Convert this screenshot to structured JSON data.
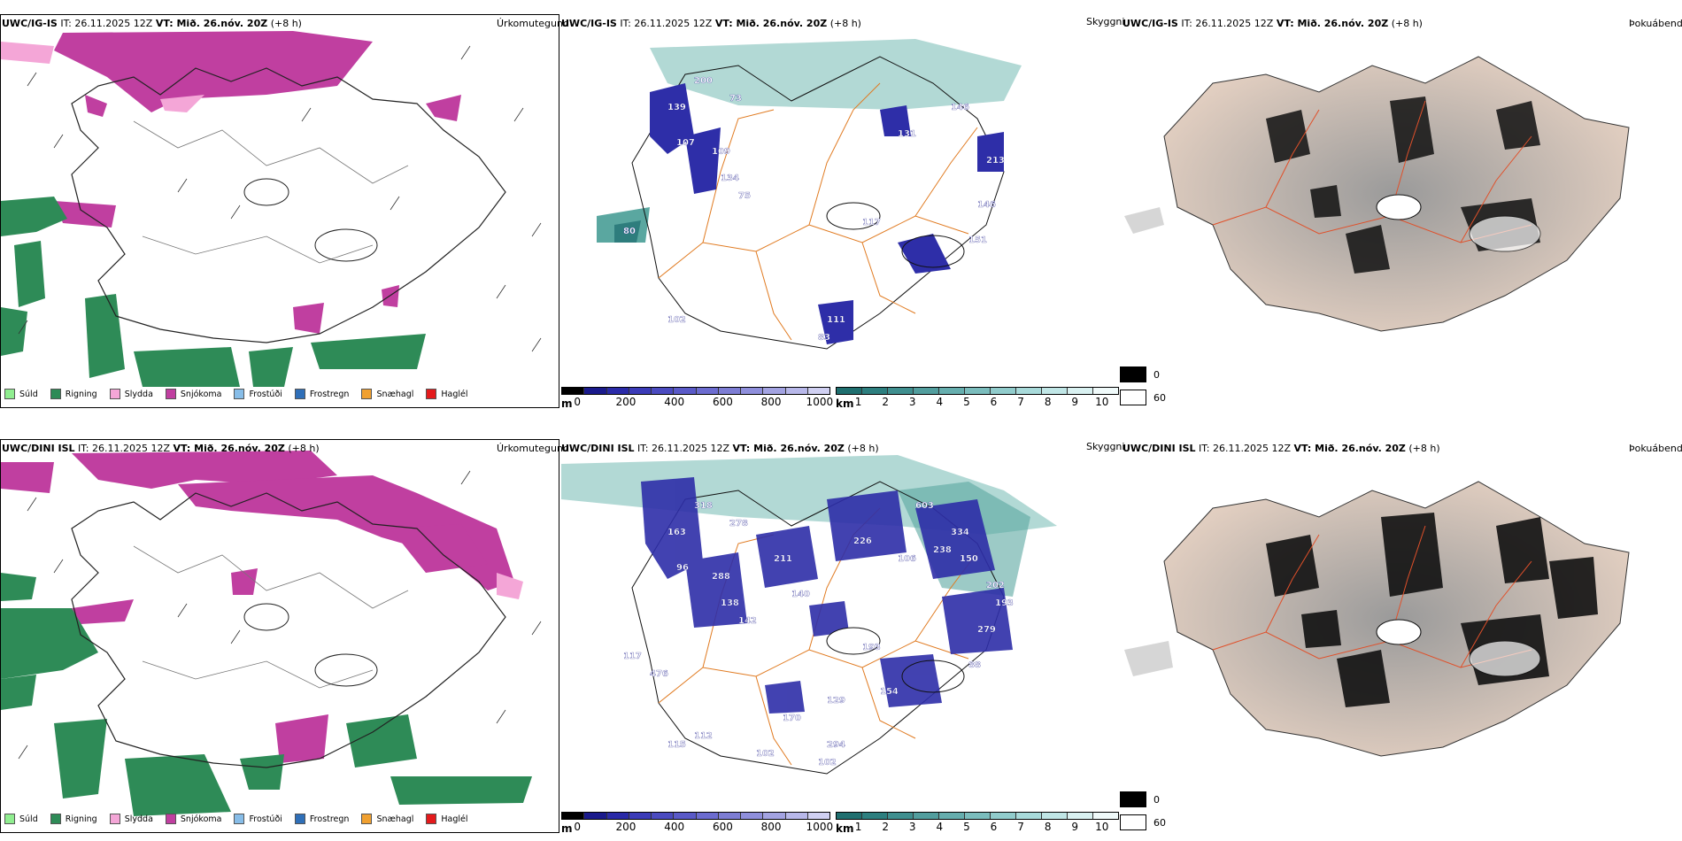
{
  "rows": [
    {
      "model": "UWC/IG-IS",
      "it_label": "IT: 26.11.2025 12Z",
      "vt_label": "VT: Mið. 26.nóv. 20Z",
      "lead": "(+8 h)",
      "precip_title": "Úrkomutegund",
      "cloud_title": "Skyggni",
      "fog_title": "Þokuábendi",
      "cloud_labels": [
        "139",
        "200",
        "73",
        "107",
        "109",
        "134",
        "75",
        "80",
        "102",
        "111",
        "83",
        "117",
        "151",
        "131",
        "146",
        "213",
        "146"
      ]
    },
    {
      "model": "UWC/DINI ISL",
      "it_label": "IT: 26.11.2025 12Z",
      "vt_label": "VT: Mið. 26.nóv. 20Z",
      "lead": "(+8 h)",
      "precip_title": "Úrkomutegund",
      "cloud_title": "Skyggni",
      "fog_title": "Þokuábendi",
      "cloud_labels": [
        "163",
        "318",
        "278",
        "96",
        "288",
        "138",
        "142",
        "117",
        "115",
        "294",
        "102",
        "193",
        "88",
        "106",
        "334",
        "202",
        "279",
        "211",
        "140",
        "226",
        "603",
        "238",
        "150",
        "193",
        "154",
        "170",
        "102",
        "112",
        "476",
        "129"
      ]
    }
  ],
  "legend": {
    "items": [
      {
        "label": "Súld",
        "color": "#90ee90"
      },
      {
        "label": "Rigning",
        "color": "#2e8b57"
      },
      {
        "label": "Slydda",
        "color": "#f4a6d7"
      },
      {
        "label": "Snjókoma",
        "color": "#c03fa0"
      },
      {
        "label": "Frostúði",
        "color": "#87bde8"
      },
      {
        "label": "Frostregn",
        "color": "#2f6fb8"
      },
      {
        "label": "Snæhagl",
        "color": "#f0a030"
      },
      {
        "label": "Haglél",
        "color": "#e41a1c"
      }
    ]
  },
  "cloudbase_bar": {
    "unit": "m",
    "ticks": [
      "0",
      "200",
      "400",
      "600",
      "800",
      "1000"
    ],
    "colors": [
      "#000000",
      "#1a1a8c",
      "#2a2aa8",
      "#3b3bb8",
      "#4b4bc0",
      "#5a5ac8",
      "#6c6cd0",
      "#7d7dd4",
      "#8f8fdc",
      "#a3a3e2",
      "#b8b8ea",
      "#d0d0f2"
    ]
  },
  "visibility_bar": {
    "unit": "km",
    "ticks": [
      "1",
      "2",
      "3",
      "4",
      "5",
      "6",
      "7",
      "8",
      "9",
      "10"
    ],
    "colors": [
      "#1f6f6f",
      "#2d7f7f",
      "#3f8f8f",
      "#529e9e",
      "#66aeae",
      "#7bbdbd",
      "#91cccc",
      "#a8dada",
      "#c0e6e6",
      "#d9f1f1",
      "#f0fafa"
    ]
  },
  "fog_legend": {
    "values": [
      "0",
      "60"
    ]
  }
}
